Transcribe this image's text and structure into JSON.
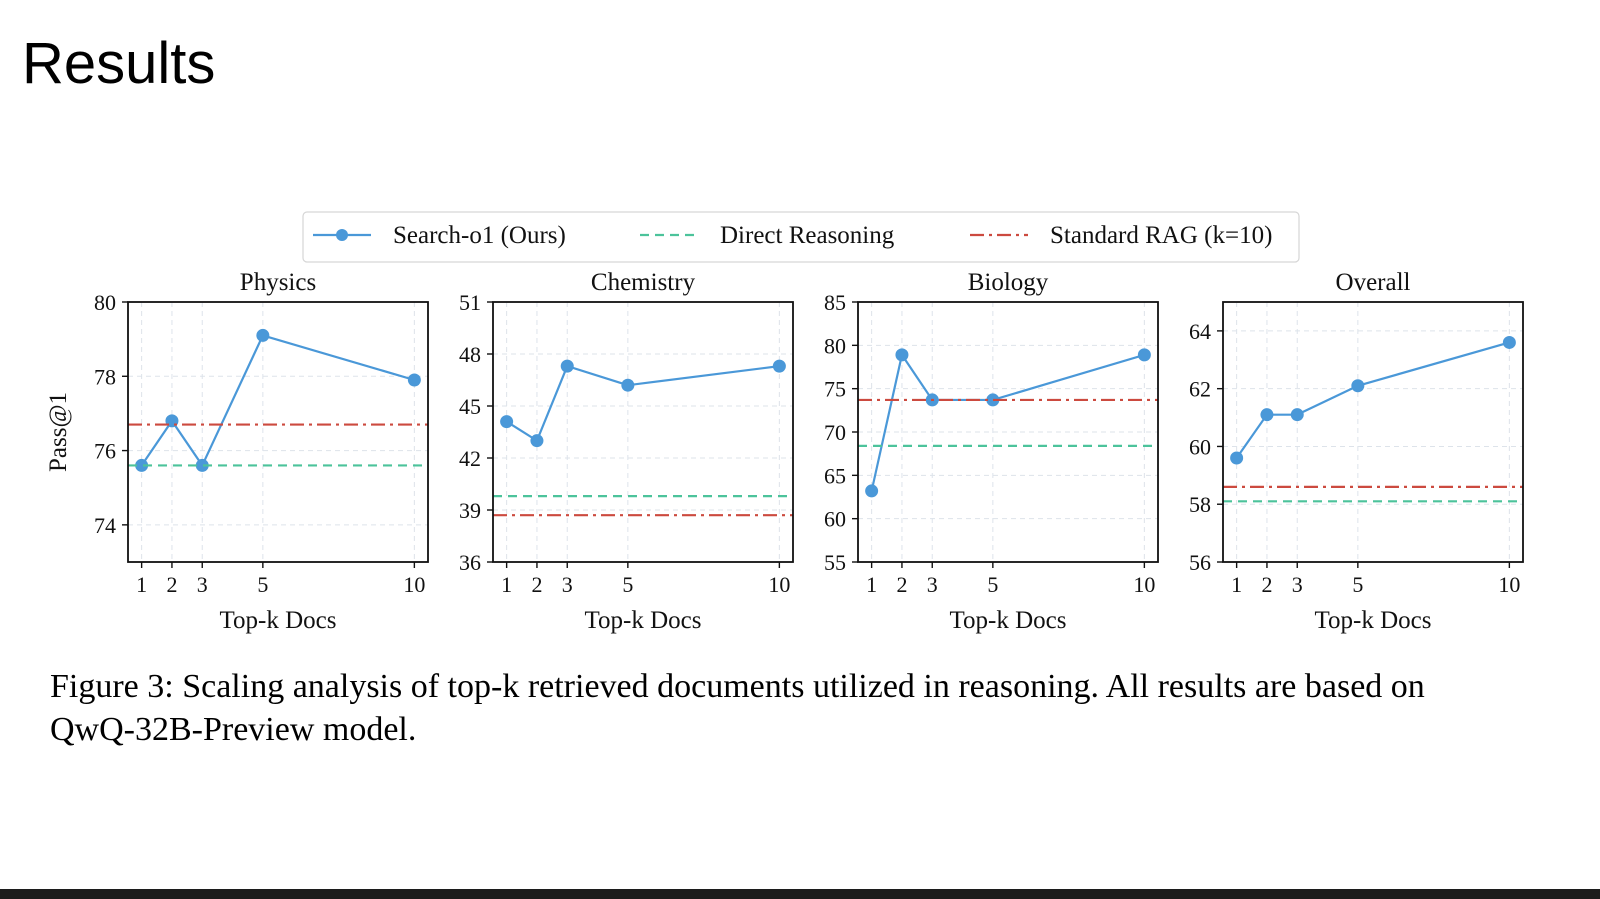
{
  "slide": {
    "title": "Results",
    "caption_line1": "Figure 3: Scaling analysis of top-k retrieved documents utilized in reasoning. All results are based on",
    "caption_line2": "QwQ-32B-Preview model."
  },
  "legend": {
    "placement": "top-center",
    "entries": [
      {
        "label": "Search-o1 (Ours)",
        "color": "#4a98d8",
        "style": "solid-marker"
      },
      {
        "label": "Direct Reasoning",
        "color": "#4cc39b",
        "style": "dashed"
      },
      {
        "label": "Standard RAG (k=10)",
        "color": "#cc4a3f",
        "style": "dashdot"
      }
    ]
  },
  "chart_data": [
    {
      "type": "line",
      "title": "Physics",
      "xlabel": "Top-k Docs",
      "ylabel": "Pass@1",
      "x": [
        1,
        2,
        3,
        5,
        10
      ],
      "xticks": [
        1,
        2,
        3,
        5,
        10
      ],
      "xlim": [
        0.55,
        10.45
      ],
      "ylim": [
        73,
        80
      ],
      "yticks": [
        74,
        76,
        78,
        80
      ],
      "grid": true,
      "series": [
        {
          "name": "Search-o1 (Ours)",
          "values": [
            75.6,
            76.8,
            75.6,
            79.1,
            77.9
          ]
        },
        {
          "name": "Direct Reasoning",
          "values": [
            75.6,
            75.6,
            75.6,
            75.6,
            75.6
          ]
        },
        {
          "name": "Standard RAG (k=10)",
          "values": [
            76.7,
            76.7,
            76.7,
            76.7,
            76.7
          ]
        }
      ]
    },
    {
      "type": "line",
      "title": "Chemistry",
      "xlabel": "Top-k Docs",
      "ylabel": "",
      "x": [
        1,
        2,
        3,
        5,
        10
      ],
      "xticks": [
        1,
        2,
        3,
        5,
        10
      ],
      "xlim": [
        0.55,
        10.45
      ],
      "ylim": [
        36,
        51
      ],
      "yticks": [
        36,
        39,
        42,
        45,
        48,
        51
      ],
      "grid": true,
      "series": [
        {
          "name": "Search-o1 (Ours)",
          "values": [
            44.1,
            43.0,
            47.3,
            46.2,
            47.3
          ]
        },
        {
          "name": "Direct Reasoning",
          "values": [
            39.8,
            39.8,
            39.8,
            39.8,
            39.8
          ]
        },
        {
          "name": "Standard RAG (k=10)",
          "values": [
            38.7,
            38.7,
            38.7,
            38.7,
            38.7
          ]
        }
      ]
    },
    {
      "type": "line",
      "title": "Biology",
      "xlabel": "Top-k Docs",
      "ylabel": "",
      "x": [
        1,
        2,
        3,
        5,
        10
      ],
      "xticks": [
        1,
        2,
        3,
        5,
        10
      ],
      "xlim": [
        0.55,
        10.45
      ],
      "ylim": [
        55,
        85
      ],
      "yticks": [
        55,
        60,
        65,
        70,
        75,
        80,
        85
      ],
      "grid": true,
      "series": [
        {
          "name": "Search-o1 (Ours)",
          "values": [
            63.2,
            78.9,
            73.7,
            73.7,
            78.9
          ]
        },
        {
          "name": "Direct Reasoning",
          "values": [
            68.4,
            68.4,
            68.4,
            68.4,
            68.4
          ]
        },
        {
          "name": "Standard RAG (k=10)",
          "values": [
            73.7,
            73.7,
            73.7,
            73.7,
            73.7
          ]
        }
      ]
    },
    {
      "type": "line",
      "title": "Overall",
      "xlabel": "Top-k Docs",
      "ylabel": "",
      "x": [
        1,
        2,
        3,
        5,
        10
      ],
      "xticks": [
        1,
        2,
        3,
        5,
        10
      ],
      "xlim": [
        0.55,
        10.45
      ],
      "ylim": [
        56,
        65
      ],
      "yticks": [
        56,
        58,
        60,
        62,
        64
      ],
      "grid": true,
      "series": [
        {
          "name": "Search-o1 (Ours)",
          "values": [
            59.6,
            61.1,
            61.1,
            62.1,
            63.6
          ]
        },
        {
          "name": "Direct Reasoning",
          "values": [
            58.1,
            58.1,
            58.1,
            58.1,
            58.1
          ]
        },
        {
          "name": "Standard RAG (k=10)",
          "values": [
            58.6,
            58.6,
            58.6,
            58.6,
            58.6
          ]
        }
      ]
    }
  ]
}
